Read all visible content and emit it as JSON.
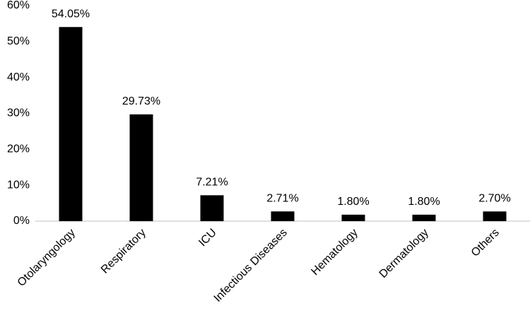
{
  "chart_data": {
    "type": "bar",
    "categories": [
      "Otolaryngology",
      "Respiratory",
      "ICU",
      "Infectious Diseases",
      "Hematology",
      "Dermatology",
      "Others"
    ],
    "values": [
      54.05,
      29.73,
      7.21,
      2.71,
      1.8,
      1.8,
      2.7
    ],
    "value_labels": [
      "54.05%",
      "29.73%",
      "7.21%",
      "2.71%",
      "1.80%",
      "1.80%",
      "2.70%"
    ],
    "color": "#000000",
    "ylim": [
      0,
      60
    ],
    "yticks": [
      {
        "value": 0,
        "label": "0%"
      },
      {
        "value": 10,
        "label": "10%"
      },
      {
        "value": 20,
        "label": "20%"
      },
      {
        "value": 30,
        "label": "30%"
      },
      {
        "value": 40,
        "label": "40%"
      },
      {
        "value": 50,
        "label": "50%"
      },
      {
        "value": 60,
        "label": "60%"
      }
    ],
    "grid": false
  }
}
